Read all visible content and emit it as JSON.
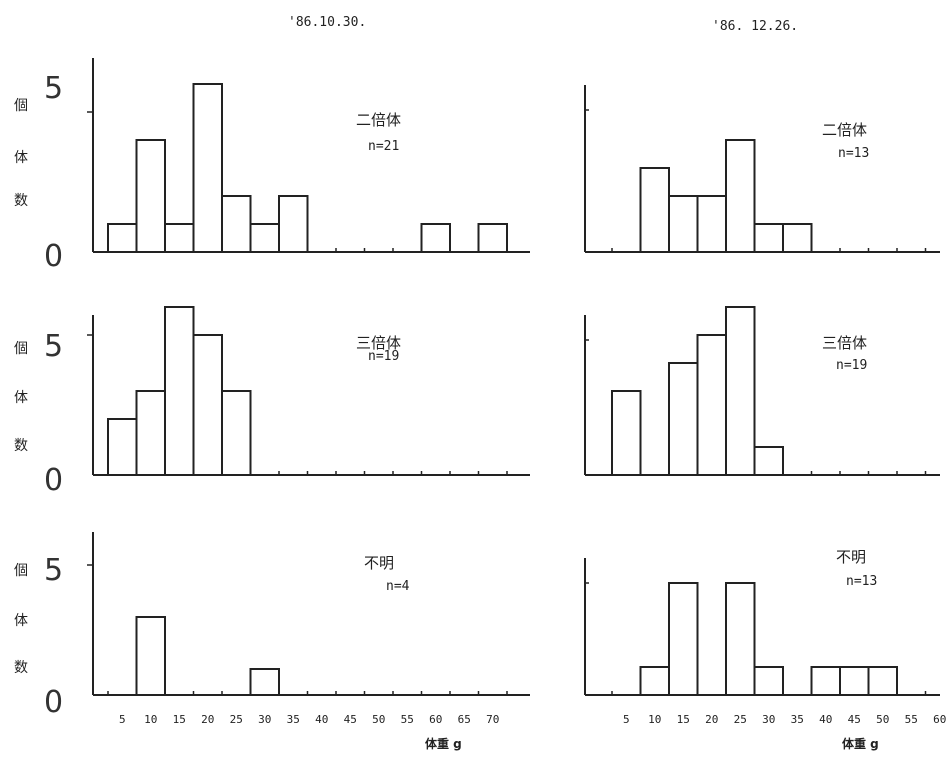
{
  "chart_data": [
    {
      "type": "bar",
      "panel": "left-1",
      "date": "'86.10.30.",
      "title": "二倍体",
      "n_label": "n=21",
      "ylabel": [
        "個",
        "体",
        "数"
      ],
      "y_axis_labels": [
        "5",
        "0"
      ],
      "ylim": [
        0,
        6
      ],
      "bin_width": 5,
      "bins": [
        [
          5,
          1
        ],
        [
          10,
          4
        ],
        [
          15,
          1
        ],
        [
          20,
          6
        ],
        [
          25,
          2
        ],
        [
          30,
          1
        ],
        [
          35,
          2
        ],
        [
          60,
          1
        ],
        [
          70,
          1
        ]
      ]
    },
    {
      "type": "bar",
      "panel": "left-2",
      "title": "三倍体",
      "n_label": "n=19",
      "ylabel": [
        "個",
        "体",
        "数"
      ],
      "y_axis_labels": [
        "5",
        "0"
      ],
      "ylim": [
        0,
        6
      ],
      "bin_width": 5,
      "bins": [
        [
          5,
          2
        ],
        [
          10,
          3
        ],
        [
          15,
          6
        ],
        [
          20,
          5
        ],
        [
          25,
          3
        ]
      ]
    },
    {
      "type": "bar",
      "panel": "left-3",
      "title": "不明",
      "n_label": "n=4",
      "ylabel": [
        "個",
        "体",
        "数"
      ],
      "y_axis_labels": [
        "5",
        "0"
      ],
      "ylim": [
        0,
        6
      ],
      "bin_width": 5,
      "bins": [
        [
          10,
          3
        ],
        [
          30,
          1
        ]
      ],
      "xticks": [
        "5",
        "10",
        "15",
        "20",
        "25",
        "30",
        "35",
        "40",
        "45",
        "50",
        "55",
        "60",
        "65",
        "70"
      ],
      "xlabel": "体重 g"
    },
    {
      "type": "bar",
      "panel": "right-1",
      "date": "'86. 12.26.",
      "title": "二倍体",
      "n_label": "n=13",
      "ylim": [
        0,
        6
      ],
      "bin_width": 5,
      "bins": [
        [
          10,
          3
        ],
        [
          15,
          2
        ],
        [
          20,
          2
        ],
        [
          25,
          4
        ],
        [
          30,
          1
        ],
        [
          35,
          1
        ]
      ]
    },
    {
      "type": "bar",
      "panel": "right-2",
      "title": "三倍体",
      "n_label": "n=19",
      "ylim": [
        0,
        6
      ],
      "bin_width": 5,
      "bins": [
        [
          5,
          3
        ],
        [
          15,
          4
        ],
        [
          20,
          5
        ],
        [
          25,
          6
        ],
        [
          30,
          1
        ]
      ]
    },
    {
      "type": "bar",
      "panel": "right-3",
      "title": "不明",
      "n_label": "n=13",
      "ylim": [
        0,
        6
      ],
      "bin_width": 5,
      "bins": [
        [
          10,
          1
        ],
        [
          15,
          4
        ],
        [
          25,
          4
        ],
        [
          30,
          1
        ],
        [
          40,
          1
        ],
        [
          45,
          1
        ],
        [
          50,
          1
        ]
      ],
      "xticks": [
        "5",
        "10",
        "15",
        "20",
        "25",
        "30",
        "35",
        "40",
        "45",
        "50",
        "55",
        "60"
      ],
      "xlabel": "体重 g"
    }
  ]
}
